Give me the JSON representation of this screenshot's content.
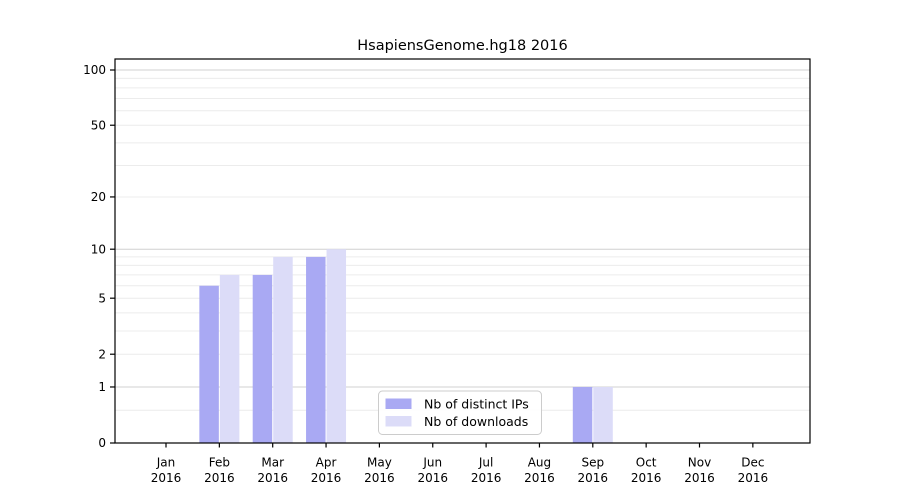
{
  "chart_data": {
    "type": "bar",
    "title": "HsapiensGenome.hg18 2016",
    "categories": [
      "Jan 2016",
      "Feb 2016",
      "Mar 2016",
      "Apr 2016",
      "May 2016",
      "Jun 2016",
      "Jul 2016",
      "Aug 2016",
      "Sep 2016",
      "Oct 2016",
      "Nov 2016",
      "Dec 2016"
    ],
    "x_tick_month_labels": [
      "Jan",
      "Feb",
      "Mar",
      "Apr",
      "May",
      "Jun",
      "Jul",
      "Aug",
      "Sep",
      "Oct",
      "Nov",
      "Dec"
    ],
    "x_tick_year_label": "2016",
    "series": [
      {
        "name": "Nb of distinct IPs",
        "color": "#a9a9f3",
        "values": [
          0,
          6,
          7,
          9,
          0,
          0,
          0,
          0,
          1,
          0,
          0,
          0
        ]
      },
      {
        "name": "Nb of downloads",
        "color": "#dcdcf8",
        "values": [
          0,
          7,
          9,
          10,
          0,
          0,
          0,
          0,
          1,
          0,
          0,
          0
        ]
      }
    ],
    "y_scale": "log1p",
    "ylim": [
      0,
      114
    ],
    "y_tick_labels": [
      "0",
      "1",
      "2",
      "5",
      "10",
      "20",
      "50",
      "100"
    ],
    "y_tick_values": [
      0,
      1,
      2,
      5,
      10,
      20,
      50,
      100
    ],
    "y_major_gridlines": [
      1,
      10,
      100
    ],
    "y_minor_gridlines": [
      0.5,
      2,
      3,
      4,
      5,
      6,
      7,
      8,
      9,
      20,
      30,
      40,
      50,
      60,
      70,
      80,
      90
    ],
    "grid": true,
    "legend_position": "lower-center",
    "colors": {
      "axis": "#000000",
      "major_grid": "#d0d0d0",
      "minor_grid": "#ececec",
      "legend_border": "#cccccc",
      "background": "#ffffff"
    }
  }
}
